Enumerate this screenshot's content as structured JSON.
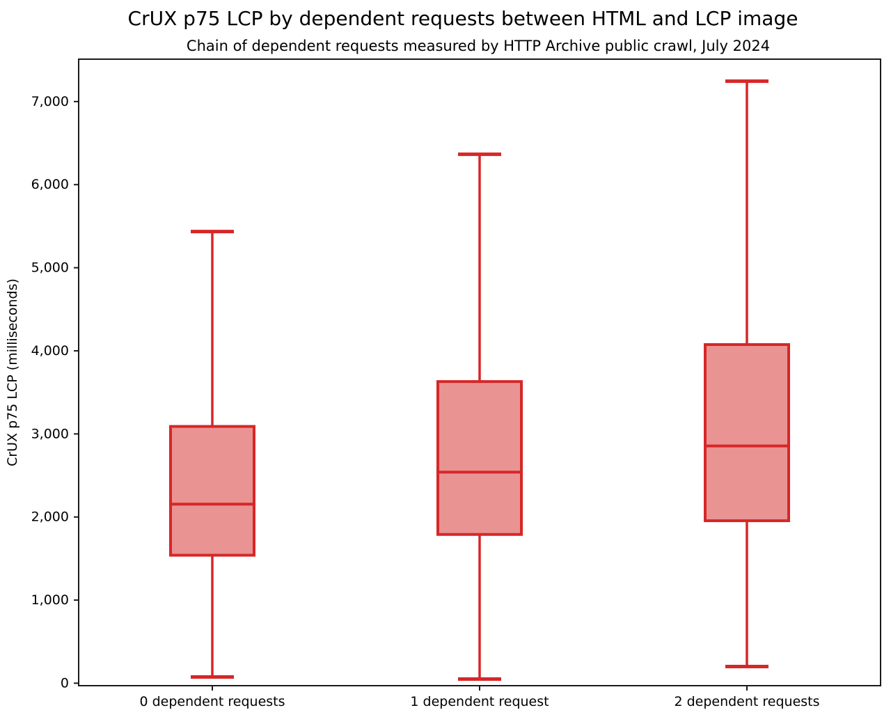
{
  "chart_data": {
    "type": "boxplot",
    "title": "CrUX p75 LCP by dependent requests between HTML and LCP image",
    "subtitle": "Chain of dependent requests measured by HTTP Archive public crawl, July 2024",
    "ylabel": "CrUX p75 LCP (milliseconds)",
    "xlabel": "",
    "categories": [
      "0 dependent requests",
      "1 dependent request",
      "2 dependent requests"
    ],
    "series": [
      {
        "category": "0 dependent requests",
        "whisker_low": 75,
        "q1": 1540,
        "median": 2155,
        "q3": 3090,
        "whisker_high": 5435
      },
      {
        "category": "1 dependent request",
        "whisker_low": 50,
        "q1": 1790,
        "median": 2540,
        "q3": 3630,
        "whisker_high": 6365
      },
      {
        "category": "2 dependent requests",
        "whisker_low": 200,
        "q1": 1955,
        "median": 2855,
        "q3": 4075,
        "whisker_high": 7245
      }
    ],
    "yticks": [
      0,
      1000,
      2000,
      3000,
      4000,
      5000,
      6000,
      7000
    ],
    "ytick_labels": [
      "0",
      "1,000",
      "2,000",
      "3,000",
      "4,000",
      "5,000",
      "6,000",
      "7,000"
    ],
    "ylim": [
      -30,
      7510
    ],
    "grid": false,
    "legend": null,
    "colors": {
      "box_stroke": "#d62728",
      "box_fill": "#ea9393",
      "axis": "#1a1a1a",
      "text": "#000000"
    }
  }
}
